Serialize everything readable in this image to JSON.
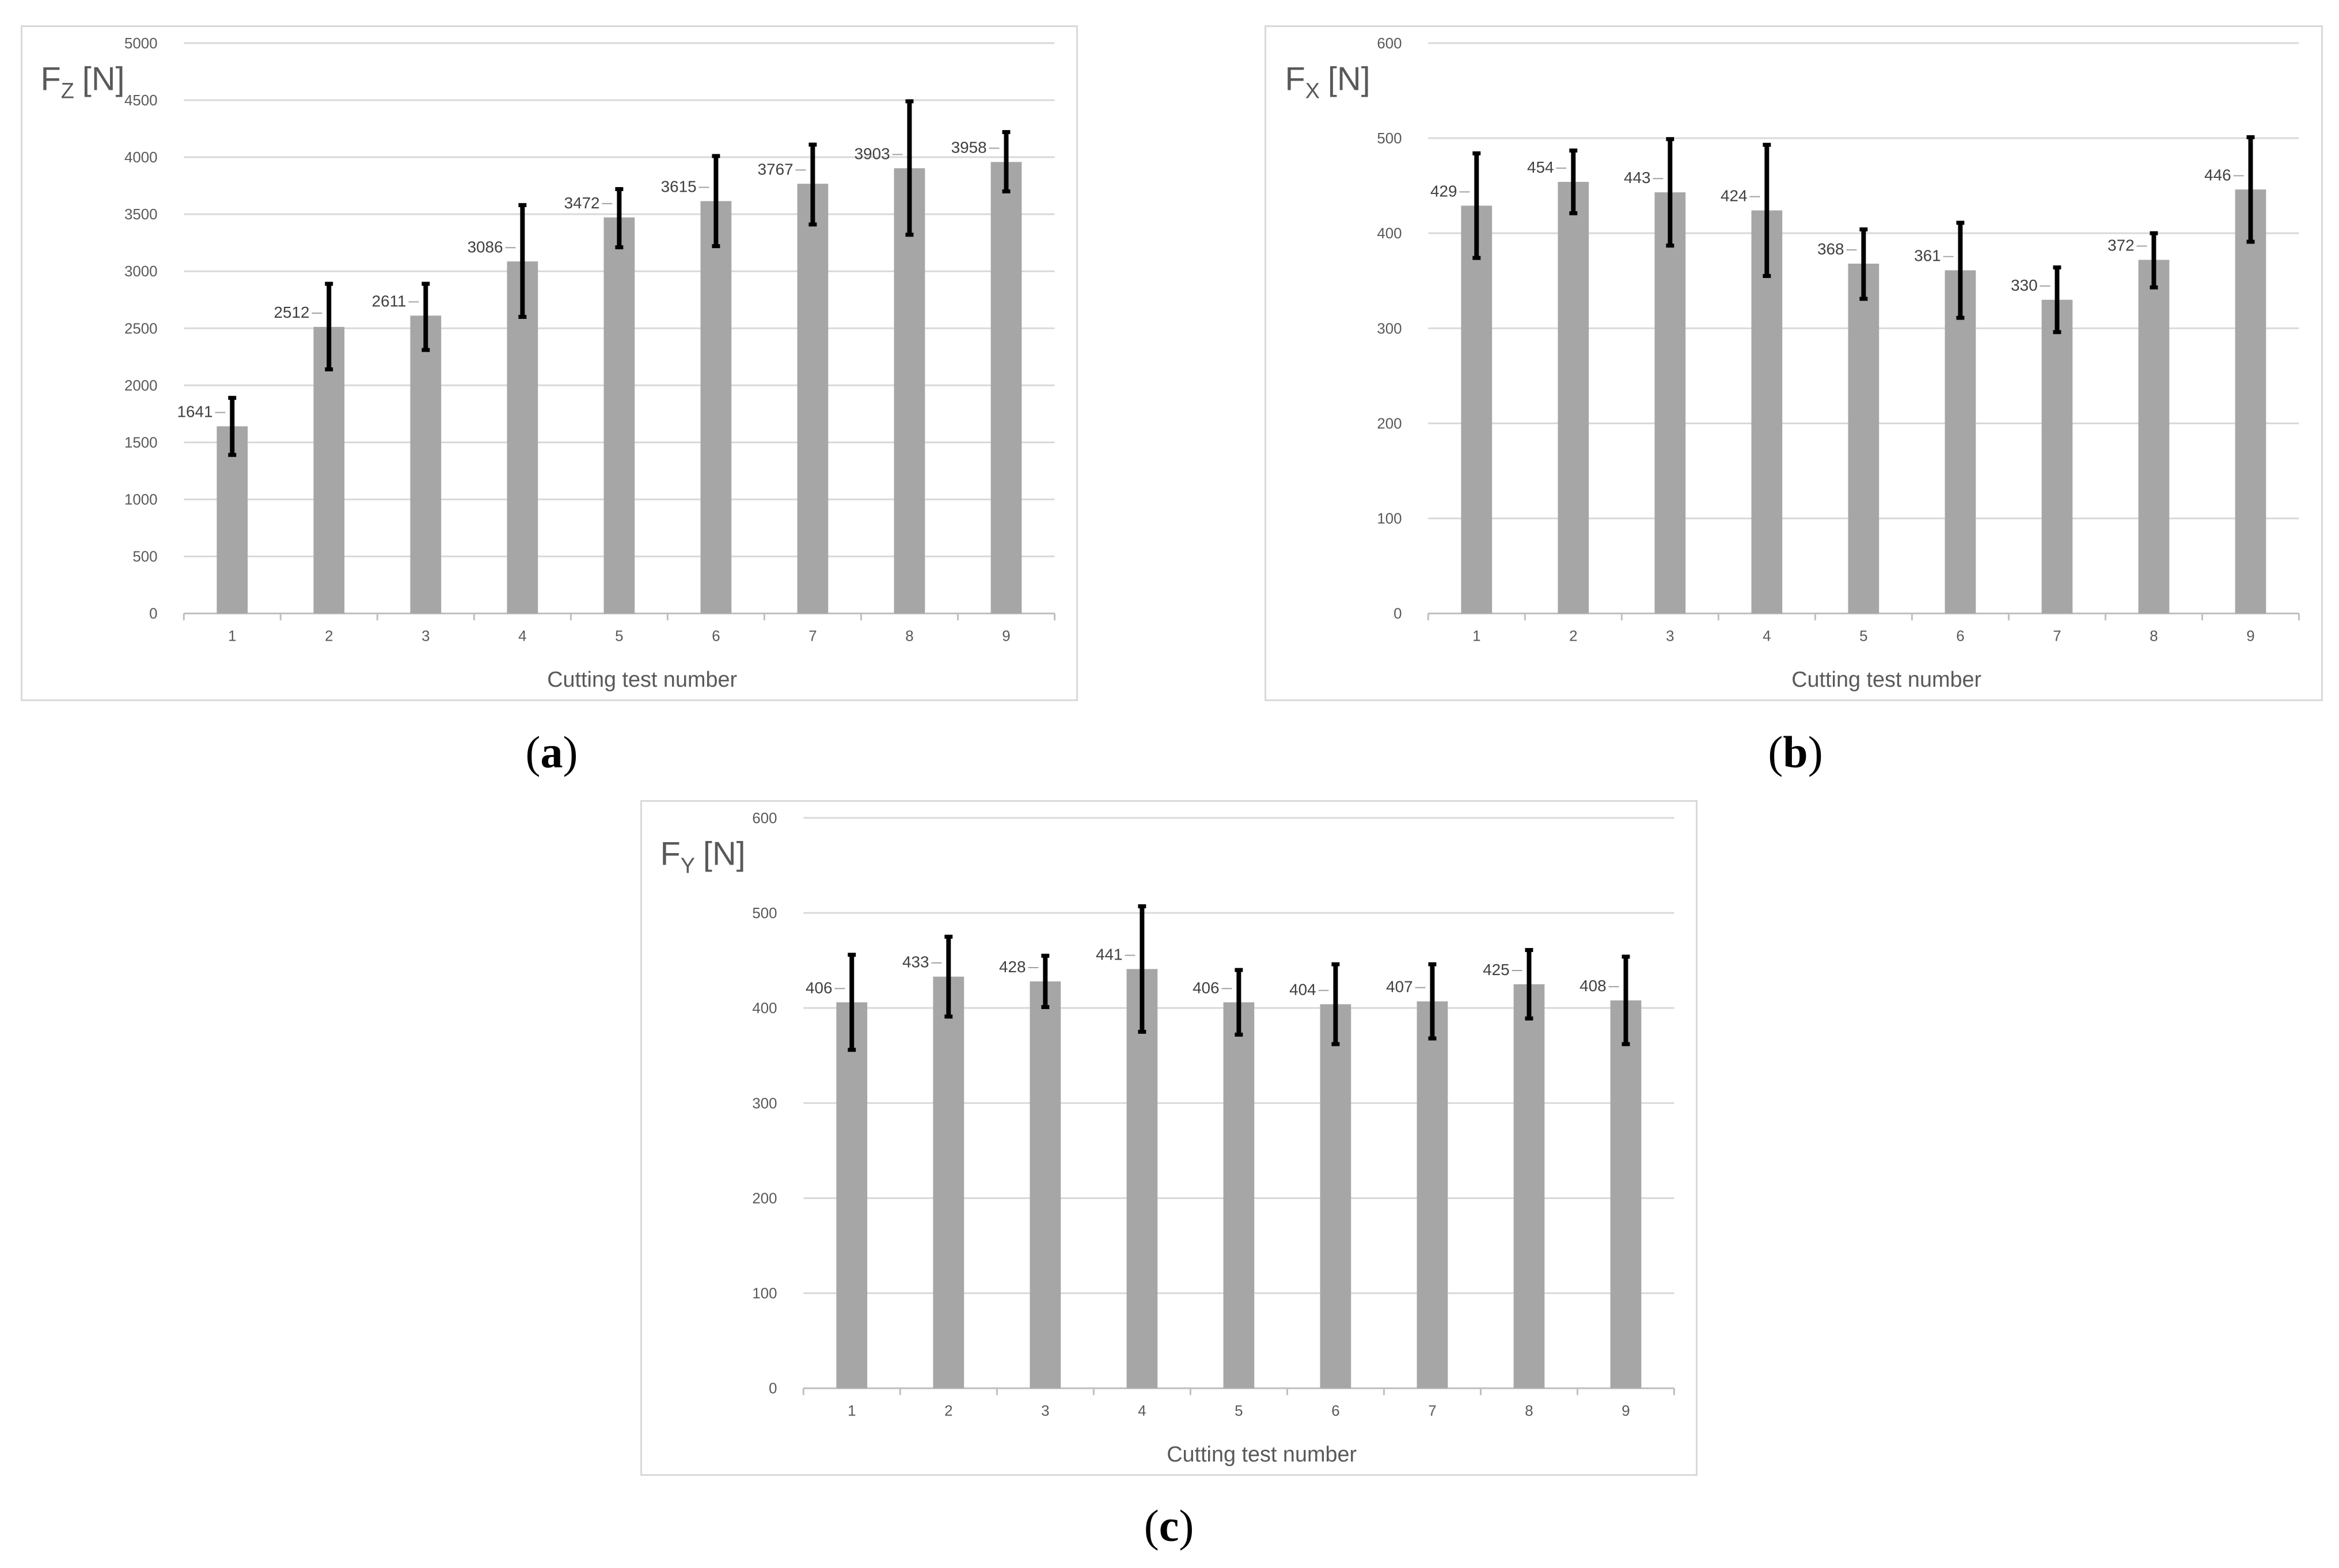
{
  "figure": {
    "panels": [
      {
        "id": "a",
        "caption": "a"
      },
      {
        "id": "b",
        "caption": "b"
      },
      {
        "id": "c",
        "caption": "c"
      }
    ]
  },
  "colors": {
    "bar": "#a6a6a6",
    "error_bar": "#000000",
    "grid": "#d9d9d9",
    "axis": "#bfbfbf",
    "text": "#595959",
    "panel_border": "#d9d9d9"
  },
  "chart_data": [
    {
      "type": "bar",
      "panel": "a",
      "title": "",
      "ylabel_main": "F",
      "ylabel_sub": "Z",
      "ylabel_unit": "[N]",
      "xlabel": "Cutting test number",
      "categories": [
        "1",
        "2",
        "3",
        "4",
        "5",
        "6",
        "7",
        "8",
        "9"
      ],
      "values": [
        1641,
        2512,
        2611,
        3086,
        3472,
        3615,
        3767,
        3903,
        3958
      ],
      "data_labels": [
        "1641",
        "2512",
        "2611",
        "3086",
        "3472",
        "3615",
        "3767",
        "3903",
        "3958"
      ],
      "error_low": [
        1390,
        2140,
        2310,
        2600,
        3210,
        3220,
        3410,
        3320,
        3700
      ],
      "error_high": [
        1890,
        2890,
        2890,
        3580,
        3720,
        4010,
        4110,
        4490,
        4220
      ],
      "ylim": [
        0,
        5000
      ],
      "yticks": [
        0,
        500,
        1000,
        1500,
        2000,
        2500,
        3000,
        3500,
        4000,
        4500,
        5000
      ],
      "ytick_labels": [
        "0",
        "500",
        "1000",
        "1500",
        "2000",
        "2500",
        "3000",
        "3500",
        "4000",
        "4500",
        "5000"
      ],
      "grid": true,
      "legend": "none"
    },
    {
      "type": "bar",
      "panel": "b",
      "title": "",
      "ylabel_main": "F",
      "ylabel_sub": "X",
      "ylabel_unit": "[N]",
      "xlabel": "Cutting test number",
      "categories": [
        "1",
        "2",
        "3",
        "4",
        "5",
        "6",
        "7",
        "8",
        "9"
      ],
      "values": [
        429,
        454,
        443,
        424,
        368,
        361,
        330,
        372,
        446
      ],
      "data_labels": [
        "429",
        "454",
        "443",
        "424",
        "368",
        "361",
        "330",
        "372",
        "446"
      ],
      "error_low": [
        374,
        421,
        387,
        355,
        331,
        311,
        296,
        343,
        391
      ],
      "error_high": [
        484,
        487,
        499,
        493,
        404,
        411,
        364,
        400,
        501
      ],
      "ylim": [
        0,
        600
      ],
      "yticks": [
        0,
        100,
        200,
        300,
        400,
        500,
        600
      ],
      "ytick_labels": [
        "0",
        "100",
        "200",
        "300",
        "400",
        "500",
        "600"
      ],
      "grid": true,
      "legend": "none"
    },
    {
      "type": "bar",
      "panel": "c",
      "title": "",
      "ylabel_main": "F",
      "ylabel_sub": "Y",
      "ylabel_unit": "[N]",
      "xlabel": "Cutting test number",
      "categories": [
        "1",
        "2",
        "3",
        "4",
        "5",
        "6",
        "7",
        "8",
        "9"
      ],
      "values": [
        406,
        433,
        428,
        441,
        406,
        404,
        407,
        425,
        408
      ],
      "data_labels": [
        "406",
        "433",
        "428",
        "441",
        "406",
        "404",
        "407",
        "425",
        "408"
      ],
      "error_low": [
        356,
        391,
        401,
        375,
        372,
        362,
        368,
        389,
        362
      ],
      "error_high": [
        456,
        475,
        455,
        507,
        440,
        446,
        446,
        461,
        454
      ],
      "ylim": [
        0,
        600
      ],
      "yticks": [
        0,
        100,
        200,
        300,
        400,
        500,
        600
      ],
      "ytick_labels": [
        "0",
        "100",
        "200",
        "300",
        "400",
        "500",
        "600"
      ],
      "grid": true,
      "legend": "none"
    }
  ]
}
